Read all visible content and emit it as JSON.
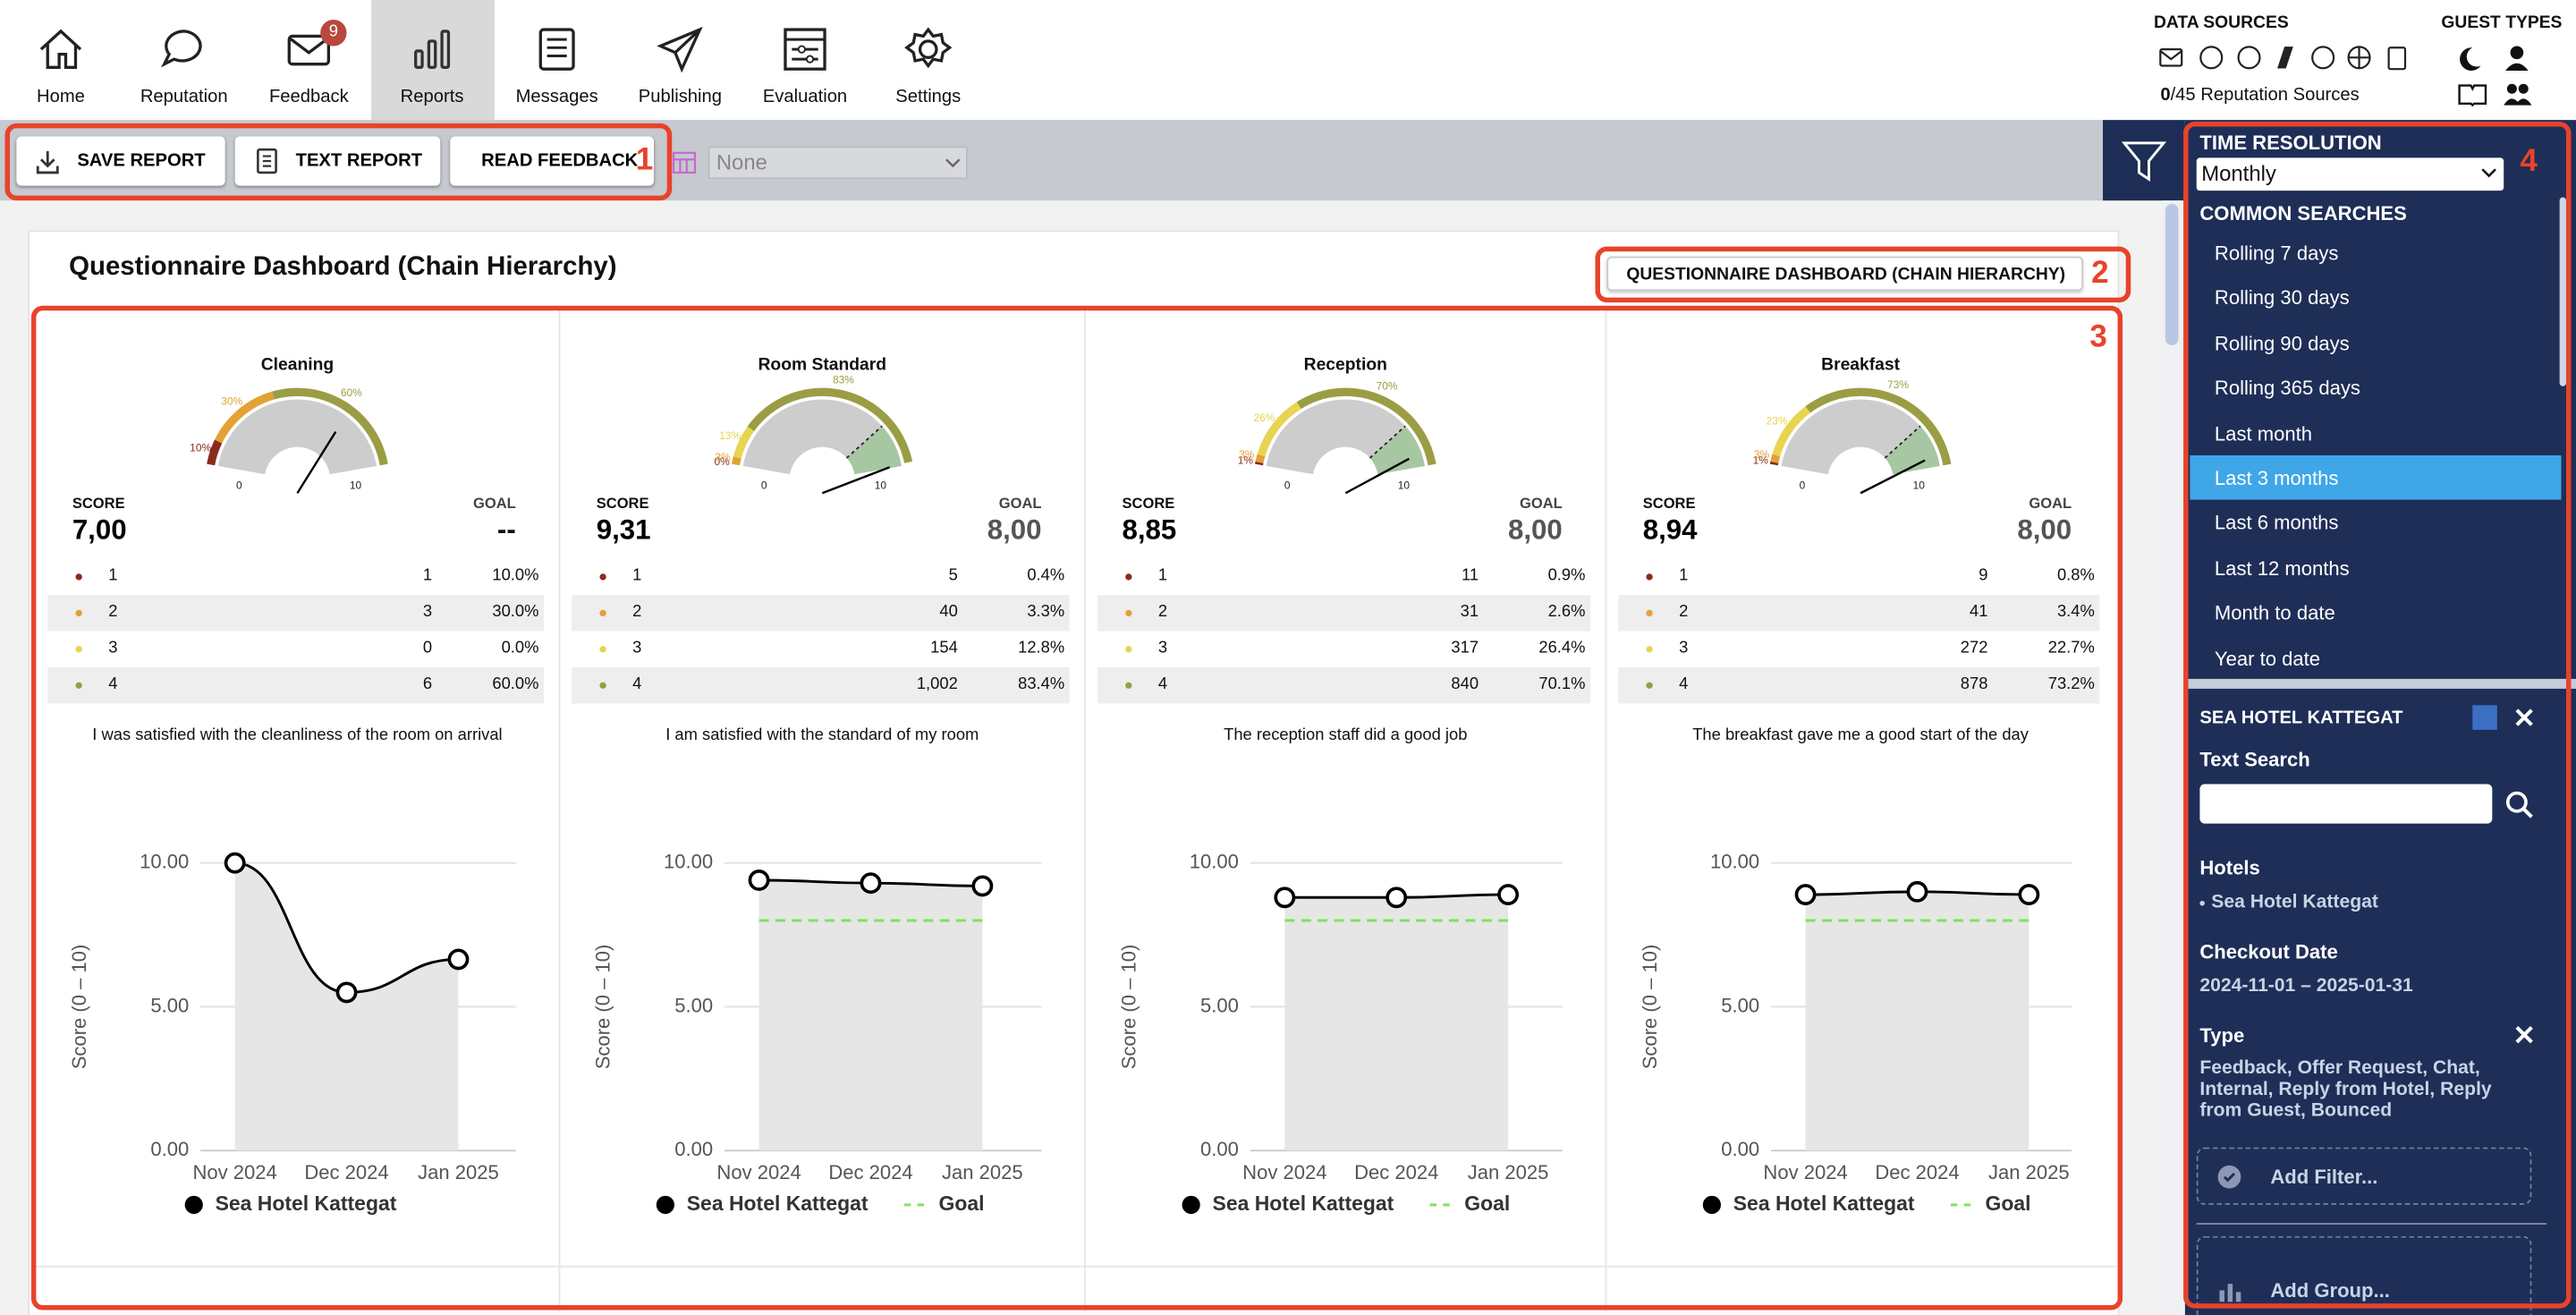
{
  "nav_items": [
    {
      "label": "Home"
    },
    {
      "label": "Reputation"
    },
    {
      "label": "Feedback",
      "badge": "9"
    },
    {
      "label": "Reports",
      "selected": true
    },
    {
      "label": "Messages"
    },
    {
      "label": "Publishing"
    },
    {
      "label": "Evaluation"
    },
    {
      "label": "Settings"
    }
  ],
  "data_sources": {
    "title": "DATA SOURCES",
    "count": "0",
    "rest": "/45 Reputation Sources"
  },
  "guest_types": {
    "title": "GUEST TYPES"
  },
  "toolbar": {
    "buttons": [
      "SAVE REPORT",
      "TEXT REPORT",
      "READ FEEDBACK"
    ],
    "select": "None"
  },
  "annotations": [
    "1",
    "2",
    "3",
    "4"
  ],
  "dashboard": {
    "title": "Questionnaire Dashboard (Chain Hierarchy)",
    "button": "QUESTIONNAIRE DASHBOARD (CHAIN HIERARCHY)",
    "score_colors": [
      "#8c2b1c",
      "#e2a235",
      "#e8d451",
      "#9b9d45"
    ],
    "panels": [
      {
        "title": "Cleaning",
        "gauge": {
          "ticks": [
            0,
            10
          ],
          "segments": [
            {
              "value": 10,
              "label": "10%"
            },
            {
              "value": 30,
              "label": "30%"
            },
            {
              "value": 0
            },
            {
              "value": 60,
              "label": "60%"
            }
          ]
        },
        "score_label": "SCORE",
        "score": {
          "value": 7,
          "label": "7,00"
        },
        "goal_label": "GOAL",
        "goal": "--",
        "distribution": [
          [
            "1",
            "1",
            "10.0%"
          ],
          [
            "2",
            "3",
            "30.0%"
          ],
          [
            "3",
            "0",
            "0.0%"
          ],
          [
            "4",
            "6",
            "60.0%"
          ]
        ],
        "question": "I was satisfied with the cleanliness of the room on arrival",
        "chart": {
          "type": "line",
          "categories": [
            "Nov 2024",
            "Dec 2024",
            "Jan 2025"
          ],
          "ylabel": "Score (0 – 10)",
          "ylim": [
            0,
            10
          ],
          "yticks": [
            {
              "value": 0,
              "label": "0.00"
            },
            {
              "value": 5,
              "label": "5.00"
            },
            {
              "value": 10,
              "label": "10.00"
            }
          ],
          "series": [
            {
              "name": "Sea Hotel Kattegat",
              "color": "#000000",
              "values": [
                10,
                5.5,
                6.65
              ]
            }
          ]
        }
      },
      {
        "title": "Room Standard",
        "gauge": {
          "ticks": [
            0,
            10
          ],
          "segments": [
            {
              "value": 0,
              "label": "0%"
            },
            {
              "value": 3,
              "label": "3%"
            },
            {
              "value": 13,
              "label": "13%"
            },
            {
              "value": 83,
              "label": "83%"
            }
          ]
        },
        "score_label": "SCORE",
        "score": {
          "value": 9.31,
          "label": "9,31"
        },
        "goal_label": "GOAL",
        "goal": {
          "value": 8,
          "label": "8,00"
        },
        "distribution": [
          [
            "1",
            "5",
            "0.4%"
          ],
          [
            "2",
            "40",
            "3.3%"
          ],
          [
            "3",
            "154",
            "12.8%"
          ],
          [
            "4",
            "1,002",
            "83.4%"
          ]
        ],
        "question": "I am satisfied with the standard of my room",
        "chart": {
          "type": "line",
          "categories": [
            "Nov 2024",
            "Dec 2024",
            "Jan 2025"
          ],
          "ylabel": "Score (0 – 10)",
          "ylim": [
            0,
            10
          ],
          "yticks": [
            {
              "value": 0,
              "label": "0.00"
            },
            {
              "value": 5,
              "label": "5.00"
            },
            {
              "value": 10,
              "label": "10.00"
            }
          ],
          "series": [
            {
              "name": "Sea Hotel Kattegat",
              "color": "#000000",
              "values": [
                9.4,
                9.3,
                9.2
              ]
            },
            {
              "name": "Goal",
              "color": "#7fe35a",
              "values": [
                8,
                8,
                8
              ]
            }
          ]
        }
      },
      {
        "title": "Reception",
        "gauge": {
          "ticks": [
            0,
            10
          ],
          "segments": [
            {
              "value": 1,
              "label": "1%"
            },
            {
              "value": 3,
              "label": "3%"
            },
            {
              "value": 26,
              "label": "26%"
            },
            {
              "value": 70,
              "label": "70%"
            }
          ]
        },
        "score_label": "SCORE",
        "score": {
          "value": 8.85,
          "label": "8,85"
        },
        "goal_label": "GOAL",
        "goal": {
          "value": 8,
          "label": "8,00"
        },
        "distribution": [
          [
            "1",
            "11",
            "0.9%"
          ],
          [
            "2",
            "31",
            "2.6%"
          ],
          [
            "3",
            "317",
            "26.4%"
          ],
          [
            "4",
            "840",
            "70.1%"
          ]
        ],
        "question": "The reception staff did a good job",
        "chart": {
          "type": "line",
          "categories": [
            "Nov 2024",
            "Dec 2024",
            "Jan 2025"
          ],
          "ylabel": "Score (0 – 10)",
          "ylim": [
            0,
            10
          ],
          "yticks": [
            {
              "value": 0,
              "label": "0.00"
            },
            {
              "value": 5,
              "label": "5.00"
            },
            {
              "value": 10,
              "label": "10.00"
            }
          ],
          "series": [
            {
              "name": "Sea Hotel Kattegat",
              "color": "#000000",
              "values": [
                8.8,
                8.8,
                8.9
              ]
            },
            {
              "name": "Goal",
              "color": "#7fe35a",
              "values": [
                8,
                8,
                8
              ]
            }
          ]
        }
      },
      {
        "title": "Breakfast",
        "gauge": {
          "ticks": [
            0,
            10
          ],
          "segments": [
            {
              "value": 1,
              "label": "1%"
            },
            {
              "value": 3,
              "label": "3%"
            },
            {
              "value": 23,
              "label": "23%"
            },
            {
              "value": 73,
              "label": "73%"
            }
          ]
        },
        "score_label": "SCORE",
        "score": {
          "value": 8.94,
          "label": "8,94"
        },
        "goal_label": "GOAL",
        "goal": {
          "value": 8,
          "label": "8,00"
        },
        "distribution": [
          [
            "1",
            "9",
            "0.8%"
          ],
          [
            "2",
            "41",
            "3.4%"
          ],
          [
            "3",
            "272",
            "22.7%"
          ],
          [
            "4",
            "878",
            "73.2%"
          ]
        ],
        "question": "The breakfast gave me a good start of the day",
        "chart": {
          "type": "line",
          "categories": [
            "Nov 2024",
            "Dec 2024",
            "Jan 2025"
          ],
          "ylabel": "Score (0 – 10)",
          "ylim": [
            0,
            10
          ],
          "yticks": [
            {
              "value": 0,
              "label": "0.00"
            },
            {
              "value": 5,
              "label": "5.00"
            },
            {
              "value": 10,
              "label": "10.00"
            }
          ],
          "series": [
            {
              "name": "Sea Hotel Kattegat",
              "color": "#000000",
              "values": [
                8.9,
                9.0,
                8.9
              ]
            },
            {
              "name": "Goal",
              "color": "#7fe35a",
              "values": [
                8,
                8,
                8
              ]
            }
          ]
        }
      }
    ]
  },
  "sidebar": {
    "time_resolution_label": "TIME RESOLUTION",
    "time_resolution": "Monthly",
    "common_searches_label": "COMMON SEARCHES",
    "common_searches": [
      {
        "label": "Rolling 7 days"
      },
      {
        "label": "Rolling 30 days"
      },
      {
        "label": "Rolling 90 days"
      },
      {
        "label": "Rolling 365 days"
      },
      {
        "label": "Last month"
      },
      {
        "label": "Last 3 months",
        "selected": true
      },
      {
        "label": "Last 6 months"
      },
      {
        "label": "Last 12 months"
      },
      {
        "label": "Month to date"
      },
      {
        "label": "Year to date"
      }
    ],
    "group_name": "SEA HOTEL KATTEGAT",
    "text_search_label": "Text Search",
    "hotels_label": "Hotels",
    "hotels": [
      "Sea Hotel Kattegat"
    ],
    "checkout_label": "Checkout Date",
    "checkout": "2024-11-01 – 2025-01-31",
    "type_label": "Type",
    "type": "Feedback, Offer Request, Chat, Internal, Reply from Hotel, Reply from Guest, Bounced",
    "add_filter": "Add Filter...",
    "add_group": "Add Group..."
  }
}
